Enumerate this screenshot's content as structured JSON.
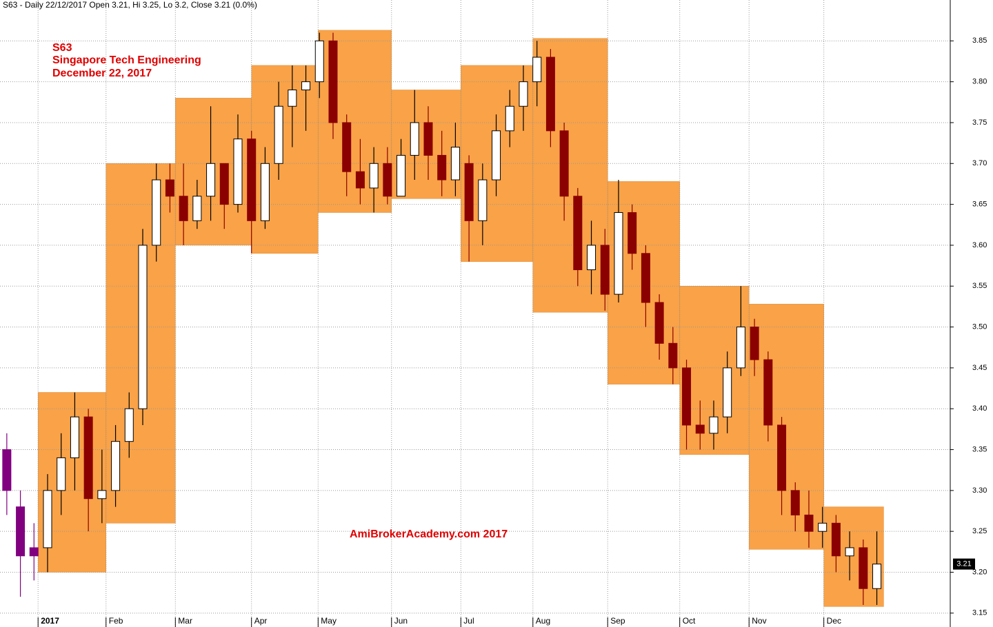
{
  "chart_data": {
    "type": "candlestick",
    "title": "S63 - Daily 22/12/2017 Open 3.21, Hi 3.25, Lo 3.2, Close 3.21 (0.0%)",
    "annotations": [
      "S63",
      "Singapore Tech Engineering",
      "December 22, 2017"
    ],
    "watermark": "AmiBrokerAcademy.com  2017",
    "ylim": [
      3.133,
      3.9
    ],
    "xlim": [
      -0.5,
      69.4
    ],
    "yticks": [
      3.15,
      {
        "value": 3.2,
        "label": "3.20"
      },
      3.25,
      {
        "value": 3.3,
        "label": "3.30"
      },
      3.35,
      {
        "value": 3.4,
        "label": "3.40"
      },
      3.45,
      {
        "value": 3.5,
        "label": "3.50"
      },
      3.55,
      {
        "value": 3.6,
        "label": "3.60"
      },
      3.65,
      {
        "value": 3.7,
        "label": "3.70"
      },
      3.75,
      {
        "value": 3.8,
        "label": "3.80"
      },
      3.85
    ],
    "xticks": [
      {
        "value": 2.3,
        "label": "2017"
      },
      {
        "value": 7.3,
        "label": "Feb"
      },
      {
        "value": 12.4,
        "label": "Mar"
      },
      {
        "value": 18.0,
        "label": "Apr"
      },
      {
        "value": 22.9,
        "label": "May"
      },
      {
        "value": 28.3,
        "label": "Jun"
      },
      {
        "value": 33.4,
        "label": "Jul"
      },
      {
        "value": 38.7,
        "label": "Aug"
      },
      {
        "value": 44.2,
        "label": "Sep"
      },
      {
        "value": 49.5,
        "label": "Oct"
      },
      {
        "value": 54.6,
        "label": "Nov"
      },
      {
        "value": 60.1,
        "label": "Dec"
      }
    ],
    "grid": true,
    "box_color": "#f9a247",
    "month_ranges": {
      "high": [
        3.42,
        3.7,
        3.78,
        3.82,
        3.863,
        3.79,
        3.82,
        3.853,
        3.678,
        3.55,
        3.528,
        3.28
      ],
      "low": [
        3.2,
        3.26,
        3.6,
        3.59,
        3.64,
        3.657,
        3.58,
        3.518,
        3.43,
        3.344,
        3.228,
        3.158
      ]
    },
    "last_price": 3.21,
    "series": [
      {
        "color": "#800080",
        "x": [
          0,
          1,
          2
        ],
        "open": [
          3.35,
          3.28,
          3.22
        ],
        "high": [
          3.37,
          3.3,
          3.26
        ],
        "low": [
          3.27,
          3.17,
          3.19
        ],
        "close": [
          3.3,
          3.22,
          3.23
        ]
      },
      {
        "up_color": "#ffffff",
        "down_color": "#8b0000",
        "x": [
          3,
          4,
          5,
          6,
          7,
          8,
          9,
          10,
          11,
          12,
          13,
          14,
          15,
          16,
          17,
          18,
          19,
          20,
          21,
          22,
          23,
          24,
          25,
          26,
          27,
          28,
          29,
          30,
          31,
          32,
          33,
          34,
          35,
          36,
          37,
          38,
          39,
          40,
          41,
          42,
          43,
          44,
          45,
          46,
          47,
          48,
          49,
          50,
          51,
          52,
          53,
          54,
          55,
          56,
          57,
          58,
          59,
          60,
          61,
          62,
          63,
          64
        ],
        "open": [
          3.23,
          3.3,
          3.34,
          3.39,
          3.29,
          3.3,
          3.36,
          3.4,
          3.6,
          3.68,
          3.66,
          3.63,
          3.66,
          3.7,
          3.65,
          3.73,
          3.63,
          3.7,
          3.77,
          3.79,
          3.8,
          3.85,
          3.75,
          3.69,
          3.67,
          3.7,
          3.66,
          3.71,
          3.75,
          3.71,
          3.68,
          3.7,
          3.63,
          3.68,
          3.74,
          3.77,
          3.8,
          3.83,
          3.74,
          3.66,
          3.57,
          3.6,
          3.54,
          3.64,
          3.59,
          3.53,
          3.48,
          3.45,
          3.38,
          3.37,
          3.39,
          3.45,
          3.5,
          3.46,
          3.38,
          3.3,
          3.27,
          3.25,
          3.26,
          3.22,
          3.23,
          3.18
        ],
        "high": [
          3.32,
          3.37,
          3.42,
          3.4,
          3.35,
          3.38,
          3.42,
          3.62,
          3.7,
          3.7,
          3.7,
          3.68,
          3.77,
          3.7,
          3.76,
          3.74,
          3.72,
          3.8,
          3.82,
          3.82,
          3.86,
          3.86,
          3.76,
          3.73,
          3.72,
          3.72,
          3.73,
          3.79,
          3.77,
          3.74,
          3.75,
          3.71,
          3.7,
          3.76,
          3.79,
          3.82,
          3.85,
          3.84,
          3.75,
          3.67,
          3.63,
          3.62,
          3.68,
          3.65,
          3.6,
          3.54,
          3.5,
          3.46,
          3.41,
          3.41,
          3.47,
          3.55,
          3.51,
          3.47,
          3.39,
          3.31,
          3.3,
          3.28,
          3.27,
          3.25,
          3.24,
          3.25
        ],
        "low": [
          3.2,
          3.27,
          3.3,
          3.25,
          3.26,
          3.28,
          3.34,
          3.38,
          3.58,
          3.64,
          3.6,
          3.62,
          3.63,
          3.62,
          3.64,
          3.59,
          3.62,
          3.68,
          3.72,
          3.74,
          3.78,
          3.73,
          3.66,
          3.65,
          3.64,
          3.65,
          3.66,
          3.68,
          3.68,
          3.66,
          3.66,
          3.58,
          3.6,
          3.66,
          3.72,
          3.74,
          3.77,
          3.72,
          3.63,
          3.55,
          3.54,
          3.52,
          3.53,
          3.57,
          3.5,
          3.46,
          3.43,
          3.35,
          3.35,
          3.35,
          3.37,
          3.44,
          3.44,
          3.36,
          3.27,
          3.25,
          3.23,
          3.23,
          3.2,
          3.19,
          3.16,
          3.16
        ],
        "close": [
          3.3,
          3.34,
          3.39,
          3.29,
          3.3,
          3.36,
          3.4,
          3.6,
          3.68,
          3.66,
          3.63,
          3.66,
          3.7,
          3.65,
          3.73,
          3.63,
          3.7,
          3.77,
          3.79,
          3.8,
          3.85,
          3.75,
          3.69,
          3.67,
          3.7,
          3.66,
          3.71,
          3.75,
          3.71,
          3.68,
          3.72,
          3.63,
          3.68,
          3.74,
          3.77,
          3.8,
          3.83,
          3.74,
          3.66,
          3.57,
          3.6,
          3.54,
          3.64,
          3.59,
          3.53,
          3.48,
          3.45,
          3.38,
          3.37,
          3.39,
          3.45,
          3.5,
          3.46,
          3.38,
          3.3,
          3.27,
          3.25,
          3.26,
          3.22,
          3.23,
          3.18,
          3.21
        ]
      }
    ]
  }
}
